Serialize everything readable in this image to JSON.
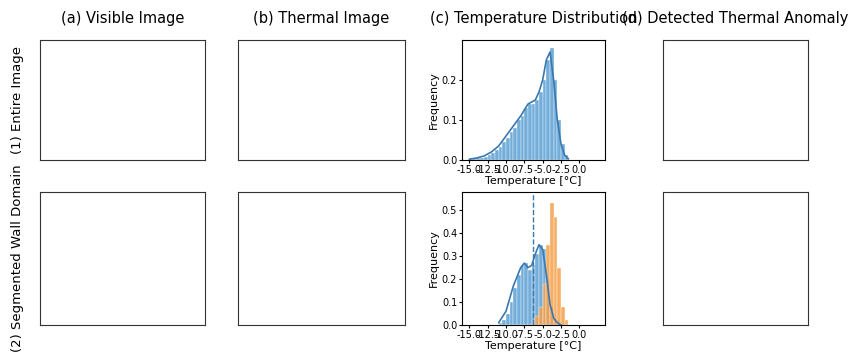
{
  "columns": [
    "(a) Visible Image",
    "(b) Thermal Image",
    "(c) Temperature Distribution",
    "(d) Detected Thermal Anomaly"
  ],
  "rows": [
    "(1) Entire Image",
    "(2) Segmented Wall Domain"
  ],
  "chart_data": [
    {
      "type": "histogram",
      "xlabel": "Temperature [°C]",
      "ylabel": "Frequency",
      "xlim": [
        -16.0,
        3.5
      ],
      "xticks": [
        -15.0,
        -12.5,
        -10.0,
        -7.5,
        -5.0,
        -2.5,
        0.0
      ],
      "ylim": [
        0.0,
        0.3
      ],
      "yticks": [
        0.0,
        0.1,
        0.2
      ],
      "bins": [
        -15.0,
        -14.5,
        -14.0,
        -13.5,
        -13.0,
        -12.5,
        -12.0,
        -11.5,
        -11.0,
        -10.5,
        -10.0,
        -9.5,
        -9.0,
        -8.5,
        -8.0,
        -7.5,
        -7.0,
        -6.5,
        -6.0,
        -5.5,
        -5.0,
        -4.5,
        -4.0,
        -3.5,
        -3.0,
        -2.5,
        -2.0,
        -1.5
      ],
      "series": [
        {
          "color": "#5a9fd4",
          "values": [
            0.002,
            0.002,
            0.004,
            0.006,
            0.008,
            0.012,
            0.018,
            0.025,
            0.032,
            0.045,
            0.055,
            0.07,
            0.08,
            0.1,
            0.11,
            0.13,
            0.14,
            0.14,
            0.15,
            0.17,
            0.2,
            0.25,
            0.28,
            0.2,
            0.1,
            0.04,
            0.012
          ]
        }
      ],
      "curves": [
        {
          "color": "#3a78ad",
          "x": [
            -15,
            -14,
            -13,
            -12,
            -11,
            -10,
            -9,
            -8,
            -7,
            -6,
            -5.5,
            -5,
            -4.5,
            -4,
            -3.5,
            -3,
            -2.5,
            -2,
            -1.5
          ],
          "values": [
            0.002,
            0.005,
            0.01,
            0.02,
            0.035,
            0.06,
            0.085,
            0.11,
            0.14,
            0.15,
            0.17,
            0.2,
            0.25,
            0.27,
            0.2,
            0.1,
            0.04,
            0.012,
            0.003
          ]
        }
      ]
    },
    {
      "type": "histogram",
      "xlabel": "Temperature [°C]",
      "ylabel": "Frequency",
      "xlim": [
        -16.0,
        3.5
      ],
      "xticks": [
        -15.0,
        -12.5,
        -10.0,
        -7.5,
        -5.0,
        -2.5,
        0.0
      ],
      "ylim": [
        0.0,
        0.58
      ],
      "yticks": [
        0.0,
        0.1,
        0.2,
        0.3,
        0.4,
        0.5
      ],
      "bins": [
        -11.0,
        -10.5,
        -10.0,
        -9.5,
        -9.0,
        -8.5,
        -8.0,
        -7.5,
        -7.0,
        -6.5,
        -6.0,
        -5.5,
        -5.0,
        -4.5,
        -4.0,
        -3.5,
        -3.0,
        -2.5,
        -2.0,
        -1.5
      ],
      "series": [
        {
          "color": "#5a9fd4",
          "values": [
            0.01,
            0.02,
            0.05,
            0.1,
            0.16,
            0.22,
            0.26,
            0.27,
            0.24,
            0.26,
            0.31,
            0.35,
            0.33,
            0.2,
            0.08,
            0.03,
            0.01,
            0.0,
            0.0
          ]
        },
        {
          "color": "#f5a04a",
          "values": [
            0,
            0,
            0,
            0,
            0,
            0,
            0,
            0,
            0,
            0.01,
            0.04,
            0.08,
            0.18,
            0.35,
            0.53,
            0.47,
            0.25,
            0.08,
            0.02
          ]
        }
      ],
      "curves": [
        {
          "color": "#3a78ad",
          "x": [
            -11,
            -10,
            -9,
            -8,
            -7.5,
            -7,
            -6.5,
            -6,
            -5.5,
            -5,
            -4.5,
            -4,
            -3.5,
            -3,
            -2.5
          ],
          "values": [
            0.01,
            0.06,
            0.17,
            0.25,
            0.27,
            0.25,
            0.26,
            0.31,
            0.35,
            0.33,
            0.22,
            0.09,
            0.03,
            0.01,
            0.0
          ]
        }
      ],
      "vlines": [
        -6.3
      ]
    }
  ]
}
